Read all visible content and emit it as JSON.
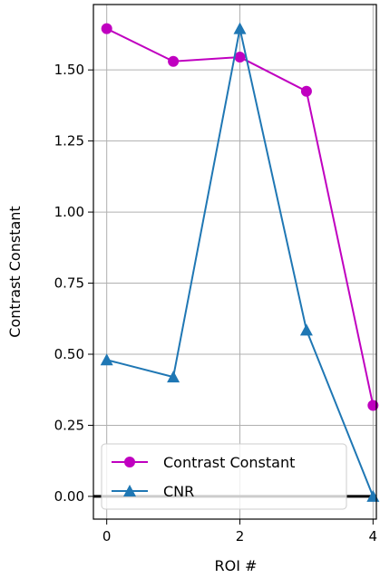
{
  "chart_data": {
    "type": "line",
    "xlabel": "ROI #",
    "ylabel": "Contrast Constant",
    "x": [
      0,
      1,
      2,
      3,
      4
    ],
    "x_ticks": [
      0,
      2,
      4
    ],
    "x_tick_labels": [
      "0",
      "2",
      "4"
    ],
    "y_ticks": [
      0.0,
      0.25,
      0.5,
      0.75,
      1.0,
      1.25,
      1.5
    ],
    "y_tick_labels": [
      "0.00",
      "0.25",
      "0.50",
      "0.75",
      "1.00",
      "1.25",
      "1.50"
    ],
    "xlim": [
      -0.2,
      4.05
    ],
    "ylim": [
      -0.08,
      1.73
    ],
    "grid": true,
    "legend_position": "lower-left",
    "horizontal_reference_line": 0,
    "series": [
      {
        "name": "Contrast Constant",
        "color": "#c000c0",
        "marker": "circle",
        "values": [
          1.645,
          1.53,
          1.545,
          1.425,
          0.32
        ]
      },
      {
        "name": "CNR",
        "color": "#1f77b4",
        "marker": "triangle",
        "values": [
          0.48,
          0.42,
          1.645,
          0.585,
          0.0
        ]
      }
    ]
  }
}
